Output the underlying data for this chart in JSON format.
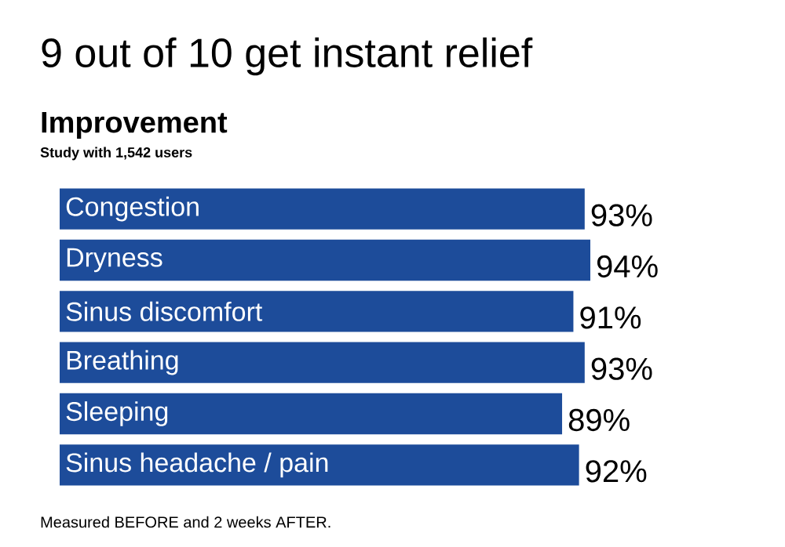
{
  "chart_data": {
    "type": "bar",
    "orientation": "horizontal",
    "title": "9 out of 10 get instant relief",
    "subtitle": "Improvement",
    "annotations": [
      "Study with 1,542 users",
      "Measured BEFORE and 2 weeks AFTER."
    ],
    "categories": [
      "Congestion",
      "Dryness",
      "Sinus discomfort",
      "Breathing",
      "Sleeping",
      "Sinus headache / pain"
    ],
    "values": [
      93,
      94,
      91,
      93,
      89,
      92
    ],
    "value_labels": [
      "93%",
      "94%",
      "91%",
      "93%",
      "89%",
      "92%"
    ],
    "color": "#1d4c9a"
  }
}
